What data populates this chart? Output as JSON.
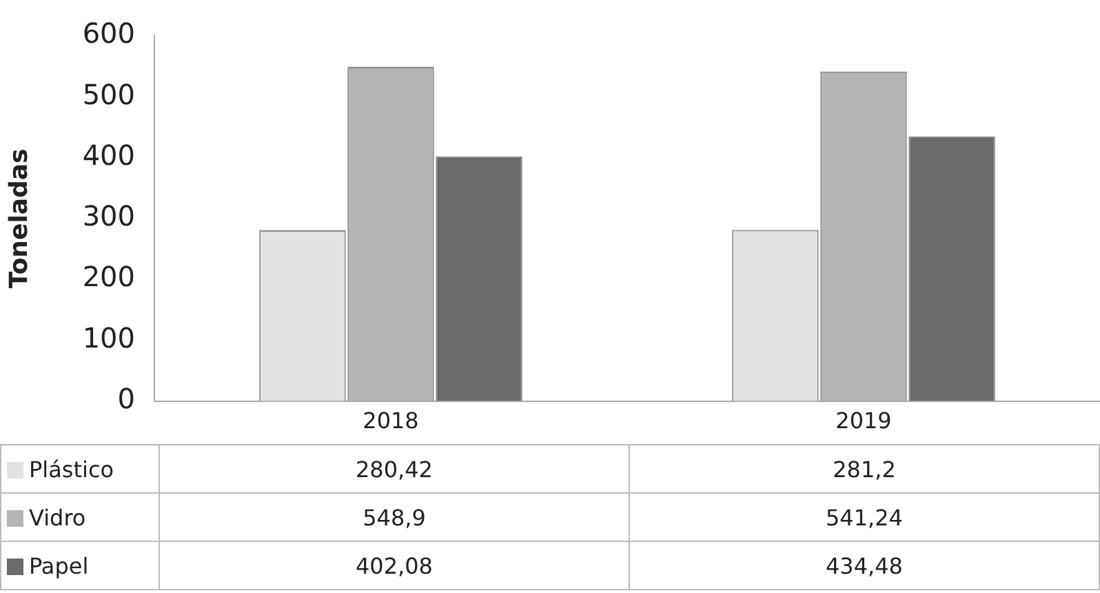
{
  "chart_data": {
    "type": "bar",
    "ylabel": "Toneladas",
    "categories": [
      "2018",
      "2019"
    ],
    "series": [
      {
        "name": "Plástico",
        "color": "#e2e2e2",
        "values": [
          280.42,
          281.2
        ],
        "value_labels": [
          "280,42",
          "281,2"
        ]
      },
      {
        "name": "Vidro",
        "color": "#b4b4b4",
        "values": [
          548.9,
          541.24
        ],
        "value_labels": [
          "548,9",
          "541,24"
        ]
      },
      {
        "name": "Papel",
        "color": "#6a6a6a",
        "values": [
          402.08,
          434.48
        ],
        "value_labels": [
          "402,08",
          "434,48"
        ]
      }
    ],
    "ylim": [
      0,
      600
    ],
    "yticks": [
      0,
      100,
      200,
      300,
      400,
      500,
      600
    ],
    "grid": false,
    "legend": "bottom left"
  }
}
